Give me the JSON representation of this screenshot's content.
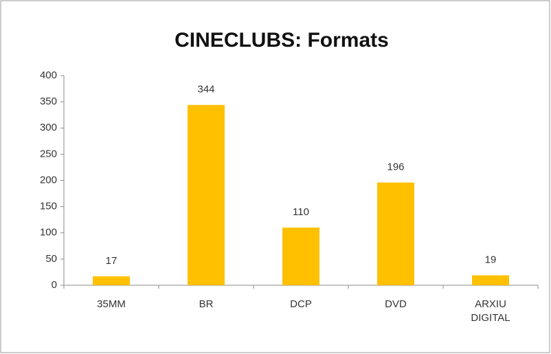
{
  "chart_data": {
    "type": "bar",
    "title": "CINECLUBS: Formats",
    "categories": [
      "35MM",
      "BR",
      "DCP",
      "DVD",
      "ARXIU DIGITAL"
    ],
    "values": [
      17,
      344,
      110,
      196,
      19
    ],
    "color": "#ffc000",
    "ylim": [
      0,
      400
    ],
    "yticks": [
      0,
      50,
      100,
      150,
      200,
      250,
      300,
      350,
      400
    ],
    "grid": false
  }
}
